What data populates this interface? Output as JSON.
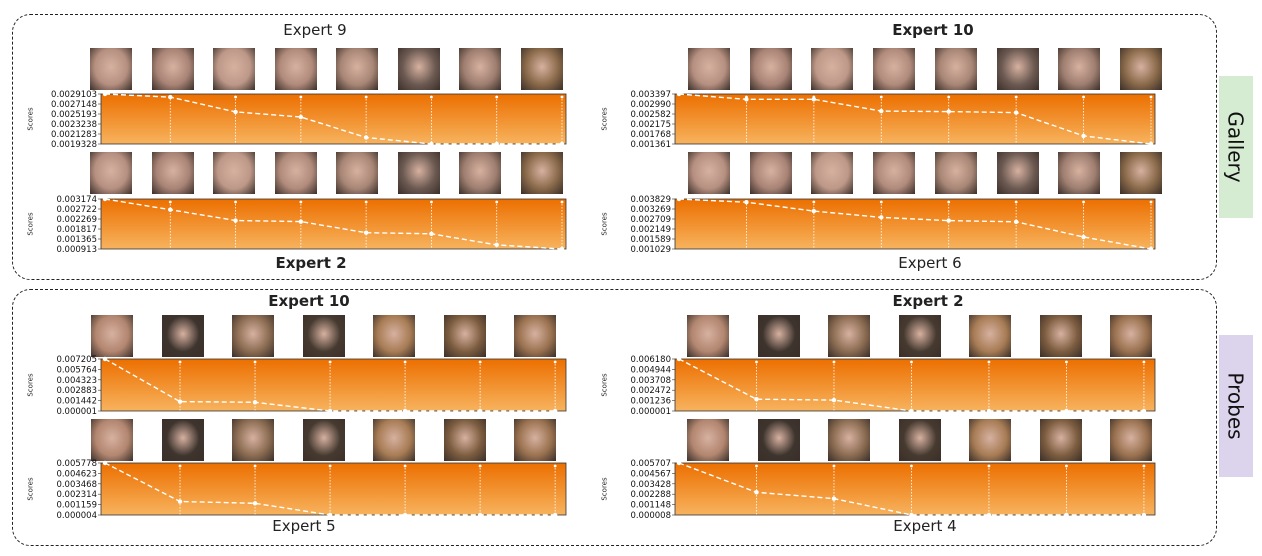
{
  "labels": {
    "gallery": "Gallery",
    "probes": "Probes"
  },
  "colors": {
    "gallery_tag": "#d5ecd3",
    "probes_tag": "#dcd3ec",
    "plot_top": "#ec6f00",
    "plot_bottom": "#f7b35e",
    "line": "#ffffff"
  },
  "titles": {
    "g_tl": "Expert 9",
    "g_tr": "Expert 10",
    "g_bl": "Expert 2",
    "g_br": "Expert 6",
    "p_tl": "Expert 10",
    "p_tr": "Expert 2",
    "p_bl": "Expert 5",
    "p_br": "Expert 4"
  },
  "chart_data": [
    {
      "id": "g_tl",
      "type": "line",
      "title": "Expert 9",
      "ylabel": "Scores",
      "yticks": [
        "0.0029103",
        "0.0027148",
        "0.0025193",
        "0.0023238",
        "0.0021283",
        "0.0019328"
      ],
      "ylim": [
        0.0019328,
        0.0029103
      ],
      "values": [
        0.0029103,
        0.00285,
        0.00256,
        0.00246,
        0.00206,
        0.0019328,
        0.0019328,
        0.0019328
      ]
    },
    {
      "id": "g_tr",
      "type": "line",
      "title": "Expert 10",
      "ylabel": "Scores",
      "yticks": [
        "0.003397",
        "0.002990",
        "0.002582",
        "0.002175",
        "0.001768",
        "0.001361"
      ],
      "ylim": [
        0.001361,
        0.003397
      ],
      "values": [
        0.003397,
        0.00318,
        0.00318,
        0.0027,
        0.00268,
        0.00264,
        0.00169,
        0.001361
      ]
    },
    {
      "id": "g_bl",
      "type": "line",
      "title": "Expert 2",
      "ylabel": "Scores",
      "yticks": [
        "0.003174",
        "0.002722",
        "0.002269",
        "0.001817",
        "0.001365",
        "0.000913"
      ],
      "ylim": [
        0.000913,
        0.003174
      ],
      "values": [
        0.003174,
        0.00269,
        0.0022,
        0.00215,
        0.00165,
        0.0016,
        0.0011,
        0.000913
      ]
    },
    {
      "id": "g_br",
      "type": "line",
      "title": "Expert 6",
      "ylabel": "Scores",
      "yticks": [
        "0.003829",
        "0.003269",
        "0.002709",
        "0.002149",
        "0.001589",
        "0.001029"
      ],
      "ylim": [
        0.001029,
        0.003829
      ],
      "values": [
        0.003829,
        0.00365,
        0.00315,
        0.0028,
        0.00262,
        0.00255,
        0.0017,
        0.001029
      ]
    },
    {
      "id": "p_tl",
      "type": "line",
      "title": "Expert 10",
      "ylabel": "Scores",
      "yticks": [
        "0.007205",
        "0.005764",
        "0.004323",
        "0.002883",
        "0.001442",
        "0.000001"
      ],
      "ylim": [
        1e-06,
        0.007205
      ],
      "values": [
        0.007205,
        0.0013,
        0.0012,
        1e-06,
        1e-06,
        1e-06,
        1e-06
      ]
    },
    {
      "id": "p_tr",
      "type": "line",
      "title": "Expert 2",
      "ylabel": "Scores",
      "yticks": [
        "0.006180",
        "0.004944",
        "0.003708",
        "0.002472",
        "0.001236",
        "0.000001"
      ],
      "ylim": [
        1e-06,
        0.00618
      ],
      "values": [
        0.00618,
        0.0014,
        0.0013,
        1e-06,
        1e-06,
        1e-06,
        1e-06
      ]
    },
    {
      "id": "p_bl",
      "type": "line",
      "title": "Expert 5",
      "ylabel": "Scores",
      "yticks": [
        "0.005778",
        "0.004623",
        "0.003468",
        "0.002314",
        "0.001159",
        "0.000004"
      ],
      "ylim": [
        4e-06,
        0.005778
      ],
      "values": [
        0.005778,
        0.0015,
        0.0013,
        4e-06,
        4e-06,
        4e-06,
        4e-06
      ]
    },
    {
      "id": "p_br",
      "type": "line",
      "title": "Expert 4",
      "ylabel": "Scores",
      "yticks": [
        "0.005707",
        "0.004567",
        "0.003428",
        "0.002288",
        "0.001148",
        "0.000008"
      ],
      "ylim": [
        8e-06,
        0.005707
      ],
      "values": [
        0.005707,
        0.0025,
        0.0018,
        8e-06,
        8e-06,
        8e-06,
        8e-06
      ]
    }
  ]
}
